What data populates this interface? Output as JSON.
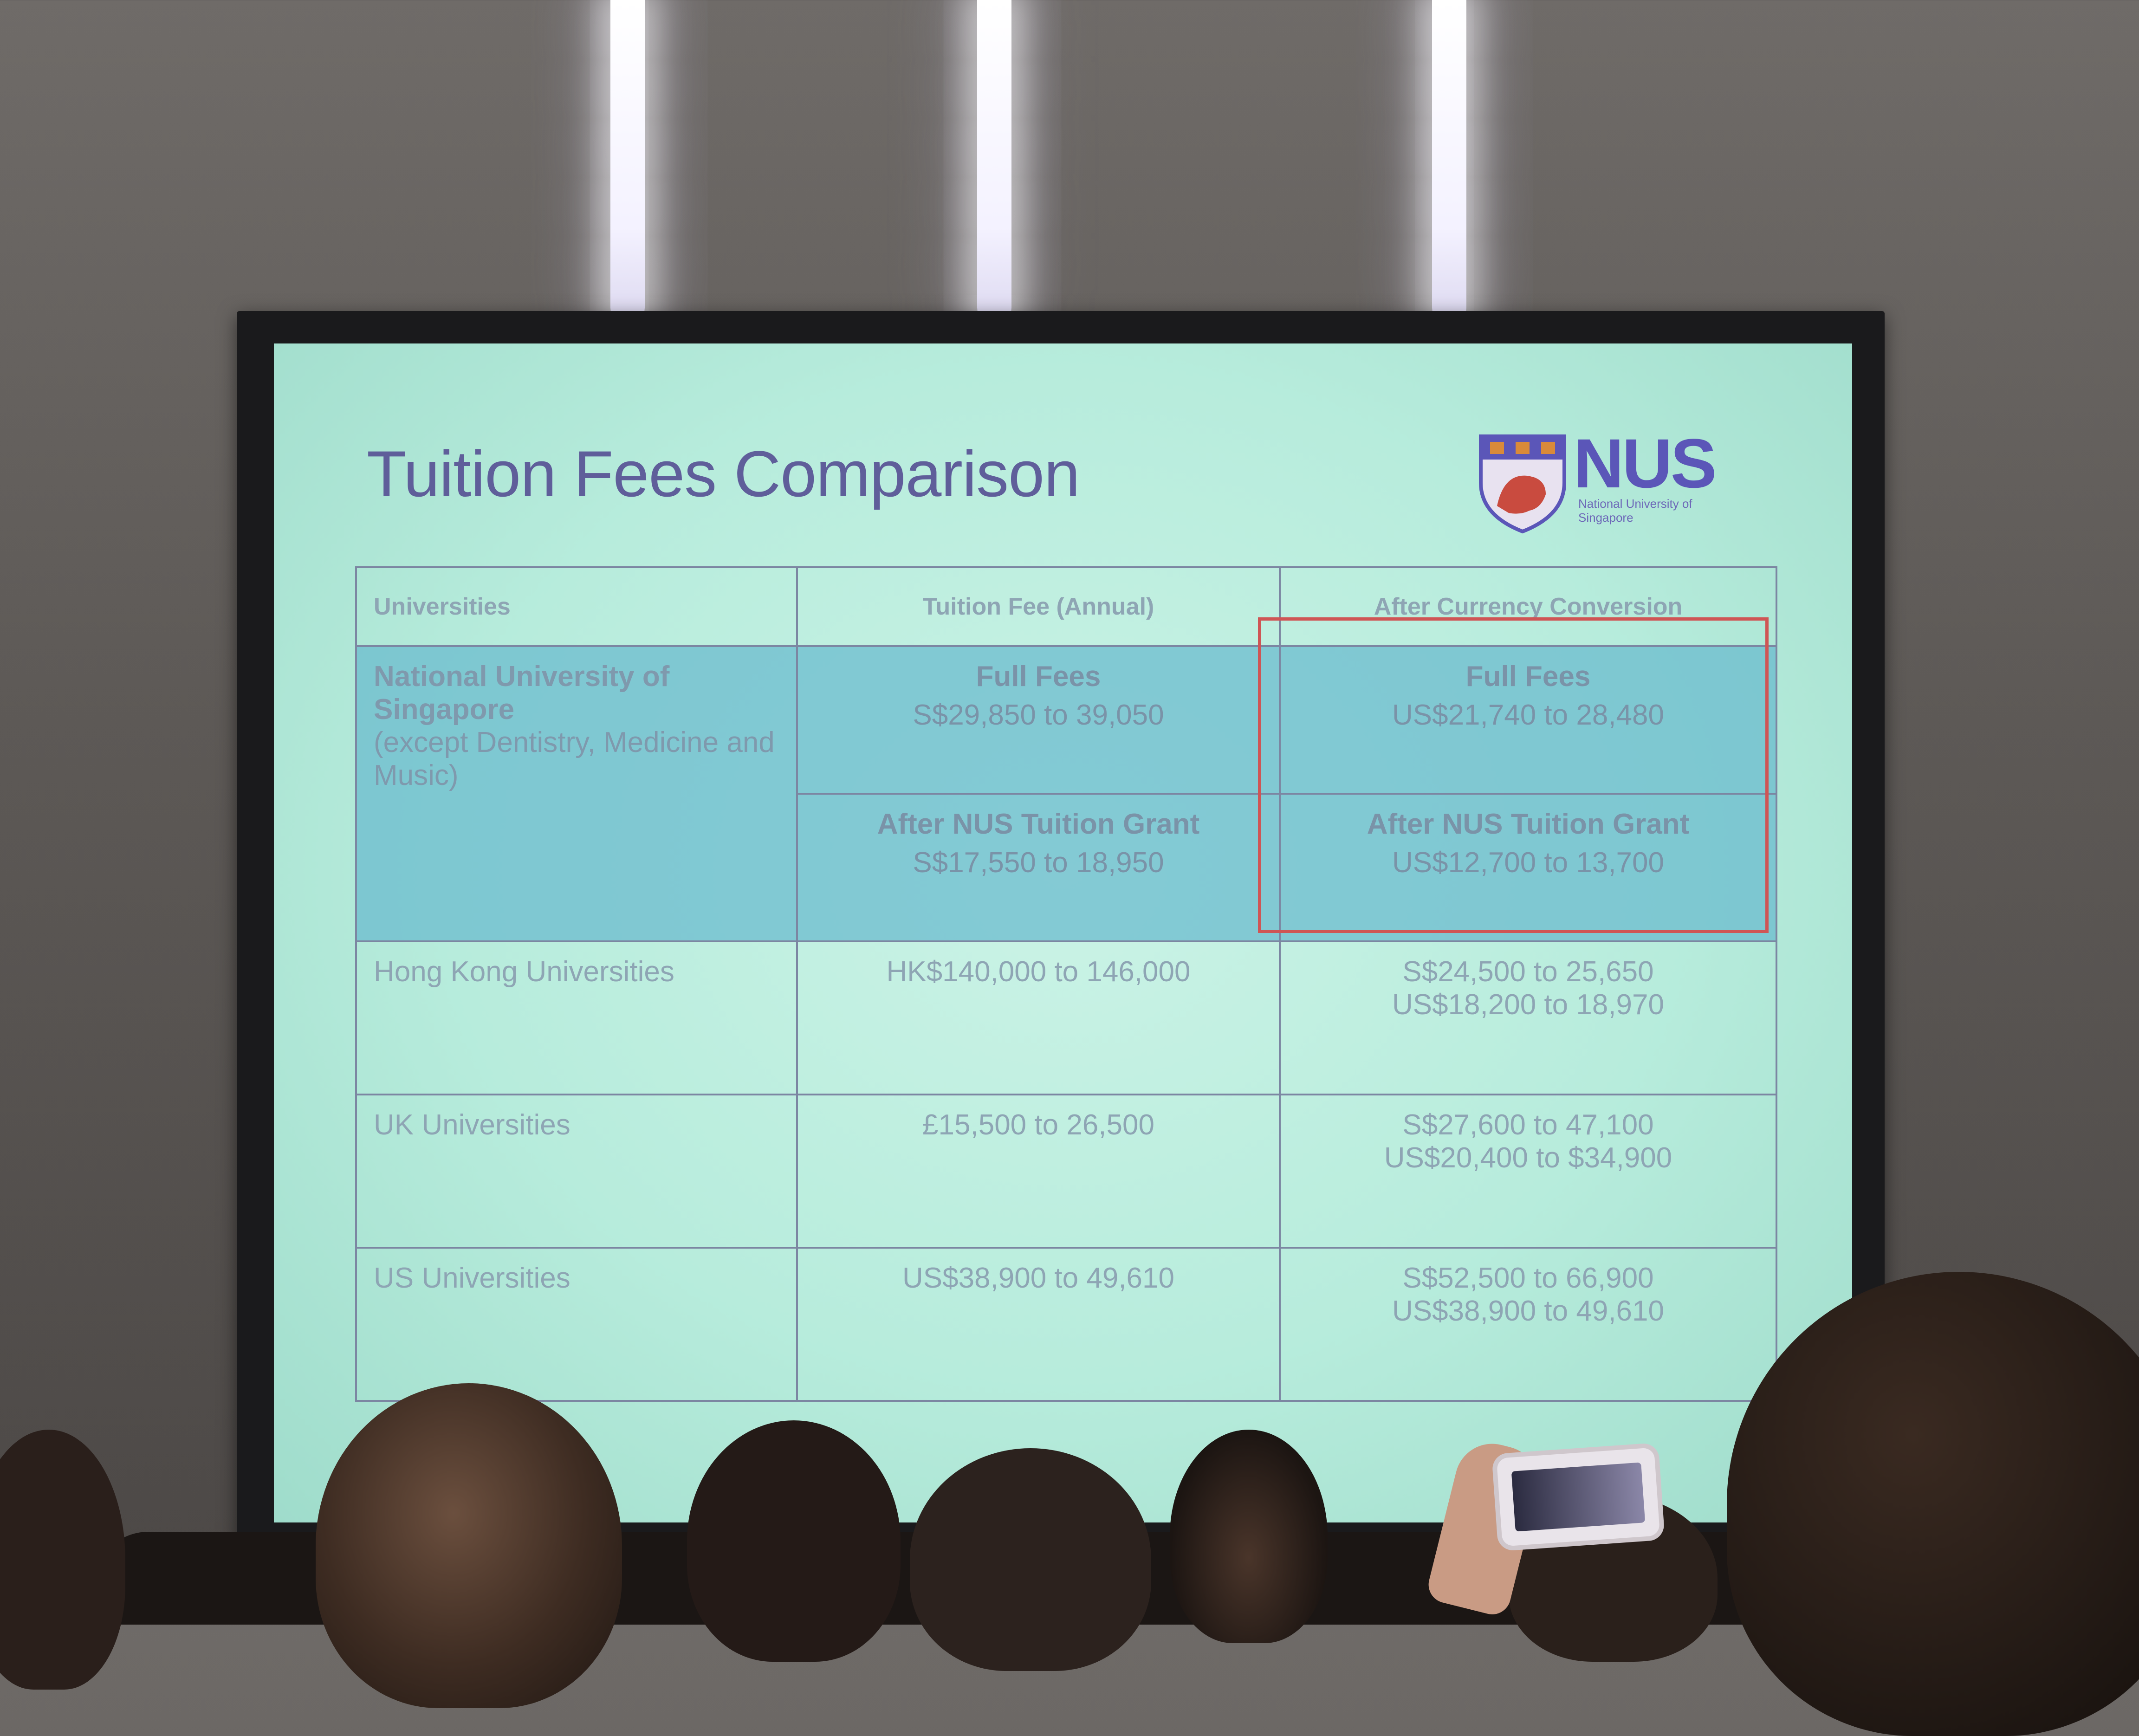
{
  "slide": {
    "title": "Tuition Fees Comparison",
    "logo": {
      "text": "NUS",
      "subtitle": "National University of Singapore"
    }
  },
  "table": {
    "headers": [
      "Universities",
      "Tuition Fee (Annual)",
      "After Currency Conversion"
    ],
    "nus": {
      "name": "National University of Singapore",
      "note": "(except Dentistry, Medicine and Music)",
      "full_fees_label": "Full Fees",
      "full_fees_sgd": "S$29,850 to 39,050",
      "full_fees_usd": "US$21,740 to 28,480",
      "grant_label": "After NUS Tuition Grant",
      "grant_sgd": "S$17,550 to 18,950",
      "grant_usd": "US$12,700 to 13,700"
    },
    "rows": [
      {
        "university": "Hong Kong Universities",
        "fee": "HK$140,000 to 146,000",
        "converted_sgd": "S$24,500 to 25,650",
        "converted_usd": "US$18,200 to 18,970"
      },
      {
        "university": "UK Universities",
        "fee": "£15,500 to 26,500",
        "converted_sgd": "S$27,600 to 47,100",
        "converted_usd": "US$20,400 to $34,900"
      },
      {
        "university": "US Universities",
        "fee": "US$38,900 to 49,610",
        "converted_sgd": "S$52,500 to 66,900",
        "converted_usd": "US$38,900 to 49,610"
      }
    ]
  },
  "colors": {
    "slide_background": "#b7ecdc",
    "title_text": "#5f5e9a",
    "highlight_cell": "#68bacd",
    "highlight_border": "#cf5555",
    "logo": "#5b56b8"
  }
}
